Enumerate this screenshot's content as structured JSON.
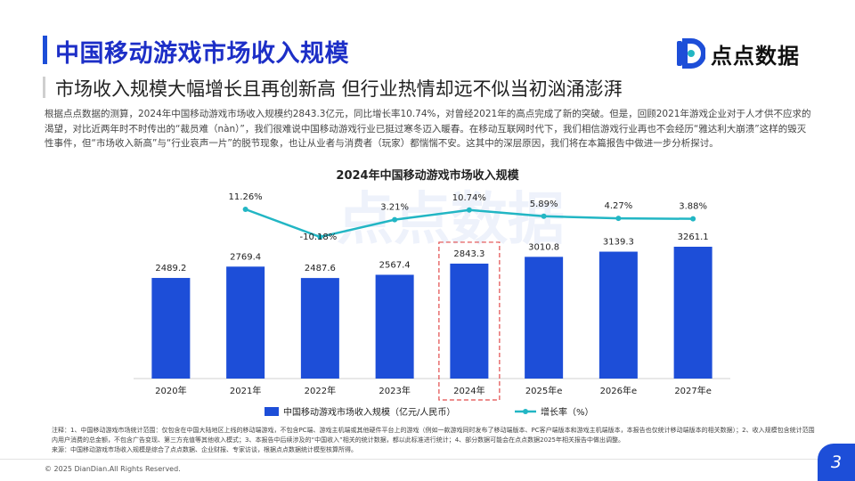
{
  "header": {
    "title": "中国移动游戏市场收入规模",
    "subtitle": "市场收入规模大幅增长且再创新高 但行业热情却远不似当初汹涌澎湃"
  },
  "brand": {
    "logo_text": "点点数据",
    "watermark_text": "点点数据",
    "accent_color": "#1d4ed8",
    "line_color": "#22b6c4"
  },
  "description": "根据点点数据的测算，2024年中国移动游戏市场收入规模约2843.3亿元，同比增长率10.74%，对曾经2021年的高点完成了新的突破。但是，回顾2021年游戏企业对于人才供不应求的渴望，对比近两年时不时传出的“裁员难（nàn）”，我们很难说中国移动游戏行业已挺过寒冬迈入暖春。在移动互联网时代下，我们相信游戏行业再也不会经历“雅达利大崩溃”这样的毁灭性事件，但“市场收入新高”与“行业哀声一片”的脱节现象，也让从业者与消费者（玩家）都惴惴不安。这其中的深层原因，我们将在本篇报告中做进一步分析探讨。",
  "chart_data": {
    "type": "bar",
    "title": "2024年中国移动游戏市场收入规模",
    "categories": [
      "2020年",
      "2021年",
      "2022年",
      "2023年",
      "2024年",
      "2025年e",
      "2026年e",
      "2027年e"
    ],
    "series": [
      {
        "name": "中国移动游戏市场收入规模（亿元/人民币）",
        "type": "bar",
        "values": [
          2489.2,
          2769.4,
          2487.6,
          2567.4,
          2843.3,
          3010.8,
          3139.3,
          3261.1
        ],
        "labels": [
          "2489.2",
          "2769.4",
          "2487.6",
          "2567.4",
          "2843.3",
          "3010.8",
          "3139.3",
          "3261.1"
        ],
        "color": "#1d4ed8"
      },
      {
        "name": "增长率（%）",
        "type": "line",
        "values": [
          null,
          11.26,
          -10.18,
          3.21,
          10.74,
          5.89,
          4.27,
          3.88
        ],
        "labels": [
          "",
          "11.26%",
          "-10.18%",
          "3.21%",
          "10.74%",
          "5.89%",
          "4.27%",
          "3.88%"
        ],
        "color": "#22b6c4"
      }
    ],
    "highlight_category": "2024年",
    "highlight_color": "#e24b4b",
    "legend_position": "bottom",
    "grid": false
  },
  "notes": "注释：1、中国移动游戏市场统计范围：仅包含在中国大陆地区上线的移动端游戏，不包含PC端、游戏主机端或其他硬件平台上的游戏（例如一款游戏同时发布了移动端版本、PC客户端版本和游戏主机端版本，本报告也仅统计移动端版本的相关数据）；2、收入规模包含统计范围内用户消费的总金额，不包含广告变现、第三方充值等其他收入模式；3、本报告中后续涉及的“中国收入”相关的统计数据，都以此标准进行统计；4、部分数据可能会在点点数据2025年相关报告中做出调整。",
  "source": "来源：中国移动游戏市场收入规模是综合了点点数据、企业财报、专家访谈，根据点点数据统计模型核算所得。",
  "footer": {
    "copyright": "© 2025 DianDian.All Rights Reserved.",
    "page_number": "3"
  }
}
